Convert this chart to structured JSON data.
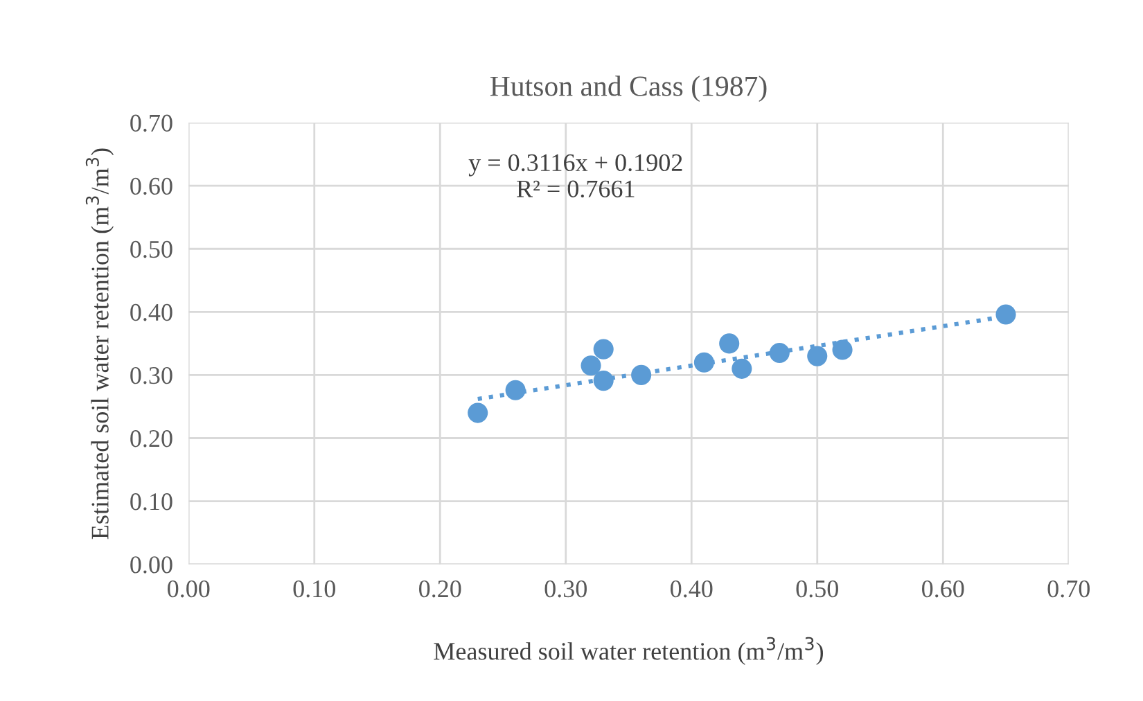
{
  "chart_data": {
    "type": "scatter",
    "title": "Hutson and Cass (1987)",
    "xlabel": "Measured soil water retention (m$^{3}$/m$^{3}$)",
    "ylabel": "Estimated soil water retention (m$^{3}$/m$^{3}$)",
    "series": [
      {
        "color": "#5b9bd5",
        "marker": "circle",
        "x": [
          0.23,
          0.26,
          0.32,
          0.33,
          0.33,
          0.36,
          0.41,
          0.43,
          0.44,
          0.47,
          0.5,
          0.52,
          0.65
        ],
        "values": [
          0.24,
          0.276,
          0.315,
          0.341,
          0.291,
          0.3,
          0.32,
          0.35,
          0.31,
          0.335,
          0.33,
          0.34,
          0.396
        ]
      },
      {
        "type": "line",
        "color": "#5b9bd5",
        "line_style": "dotted",
        "marker": "none",
        "x": [
          0.23,
          0.65
        ],
        "values": [
          0.262,
          0.393
        ]
      }
    ],
    "annotations": [
      "y = 0.3116x + 0.1902\nR² = 0.7661"
    ],
    "xlim": [
      0,
      0.7
    ],
    "ylim": [
      0,
      0.7
    ],
    "xticks": [
      {
        "value": 0,
        "label": "0.00"
      },
      {
        "value": 0.1,
        "label": "0.10"
      },
      {
        "value": 0.2,
        "label": "0.20"
      },
      {
        "value": 0.3,
        "label": "0.30"
      },
      {
        "value": 0.4,
        "label": "0.40"
      },
      {
        "value": 0.5,
        "label": "0.50"
      },
      {
        "value": 0.6,
        "label": "0.60"
      },
      {
        "value": 0.7,
        "label": "0.70"
      }
    ],
    "yticks": [
      {
        "value": 0,
        "label": "0.00"
      },
      {
        "value": 0.1,
        "label": "0.10"
      },
      {
        "value": 0.2,
        "label": "0.20"
      },
      {
        "value": 0.3,
        "label": "0.30"
      },
      {
        "value": 0.4,
        "label": "0.40"
      },
      {
        "value": 0.5,
        "label": "0.50"
      },
      {
        "value": 0.6,
        "label": "0.60"
      },
      {
        "value": 0.7,
        "label": "0.70"
      }
    ],
    "grid": true,
    "legend": false
  }
}
